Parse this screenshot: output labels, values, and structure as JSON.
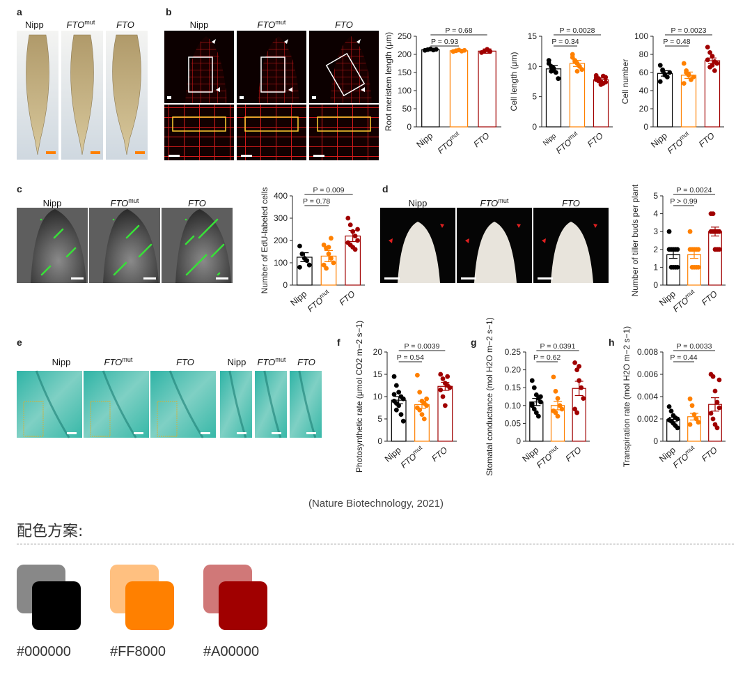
{
  "colors": {
    "nipp": "#000000",
    "mut": "#FF8000",
    "fto": "#A00000",
    "nipp_light": "#888888",
    "mut_light": "#FFC080",
    "fto_light": "#D07878"
  },
  "panel_letters": [
    "a",
    "b",
    "c",
    "d",
    "e",
    "f",
    "g",
    "h"
  ],
  "groups": [
    "Nipp",
    "FTO",
    "FTO"
  ],
  "group_sup": [
    "",
    "mut",
    ""
  ],
  "image_labels": {
    "a": [
      "Nipp",
      "FTO",
      "FTO"
    ],
    "b": [
      "Nipp",
      "FTO",
      "FTO"
    ],
    "c": [
      "Nipp",
      "FTO",
      "FTO"
    ],
    "d": [
      "Nipp",
      "FTO",
      "FTO"
    ],
    "e": [
      "Nipp",
      "FTO",
      "FTO",
      "Nipp",
      "FTO",
      "FTO"
    ]
  },
  "chart_data": [
    {
      "id": "b1",
      "type": "bar",
      "ylabel": "Root meristem length (μm)",
      "ylim": [
        0,
        250
      ],
      "ticks": [
        "0",
        "50",
        "100",
        "150",
        "200",
        "250"
      ],
      "values": [
        213,
        210,
        209
      ],
      "errors": [
        3,
        3,
        6
      ],
      "points": [
        [
          211,
          213,
          215,
          212,
          214
        ],
        [
          208,
          210,
          212,
          209,
          211
        ],
        [
          205,
          209,
          214,
          208
        ]
      ],
      "brackets": [
        {
          "text": "P = 0.68",
          "to": 2
        },
        {
          "text": "P = 0.93",
          "to": 1
        }
      ]
    },
    {
      "id": "b2",
      "type": "bar",
      "ylabel": "Cell length (μm)",
      "ylim": [
        0,
        15
      ],
      "ticks": [
        "0",
        "5",
        "10",
        "15"
      ],
      "values": [
        9.6,
        10.5,
        7.8
      ],
      "errors": [
        0.6,
        0.5,
        0.3
      ],
      "points": [
        [
          11,
          10,
          9.5,
          9,
          8,
          10.5,
          9.2,
          9.7
        ],
        [
          12,
          11,
          10.5,
          10,
          9.5,
          11.5,
          10.8,
          9.2
        ],
        [
          8.5,
          8,
          7.5,
          7.2,
          8.2,
          7.8,
          7.6,
          7,
          8.4,
          7.4,
          8.1,
          7.9
        ]
      ],
      "brackets": [
        {
          "text": "P = 0.0028",
          "to": 2
        },
        {
          "text": "P = 0.34",
          "to": 1
        }
      ]
    },
    {
      "id": "b3",
      "type": "bar",
      "ylabel": "Cell number",
      "ylim": [
        0,
        100
      ],
      "ticks": [
        "0",
        "20",
        "40",
        "60",
        "80",
        "100"
      ],
      "values": [
        59,
        57,
        73
      ],
      "errors": [
        3,
        3.5,
        3
      ],
      "points": [
        [
          68,
          62,
          58,
          55,
          60,
          50,
          63,
          57
        ],
        [
          70,
          62,
          58,
          52,
          55,
          48,
          60,
          57
        ],
        [
          88,
          82,
          78,
          72,
          70,
          74,
          66,
          68,
          62
        ]
      ],
      "brackets": [
        {
          "text": "P = 0.0023",
          "to": 2
        },
        {
          "text": "P = 0.48",
          "to": 1
        }
      ]
    },
    {
      "id": "c1",
      "type": "bar",
      "ylabel": "Number of EdU-labeled cells",
      "ylim": [
        0,
        400
      ],
      "ticks": [
        "0",
        "100",
        "200",
        "300",
        "400"
      ],
      "values": [
        125,
        130,
        220
      ],
      "errors": [
        20,
        25,
        25
      ],
      "points": [
        [
          175,
          140,
          120,
          110,
          90,
          80
        ],
        [
          180,
          165,
          140,
          120,
          100,
          90,
          75,
          170,
          210
        ],
        [
          300,
          270,
          240,
          220,
          200,
          190,
          180,
          170,
          160,
          250
        ]
      ],
      "brackets": [
        {
          "text": "P = 0.009",
          "to": 2
        },
        {
          "text": "P = 0.78",
          "to": 1
        }
      ]
    },
    {
      "id": "d1",
      "type": "bar",
      "ylabel": "Number of tiller buds per plant",
      "ylim": [
        0,
        5
      ],
      "ticks": [
        "0",
        "1",
        "2",
        "3",
        "4",
        "5"
      ],
      "values": [
        1.7,
        1.7,
        3.0
      ],
      "errors": [
        0.2,
        0.2,
        0.25
      ],
      "points": [
        [
          3,
          2,
          2,
          2,
          2,
          2,
          1,
          1,
          1,
          1
        ],
        [
          3,
          2,
          2,
          2,
          2,
          2,
          1,
          1,
          1,
          1
        ],
        [
          4,
          4,
          3,
          3,
          3,
          3,
          3,
          2,
          2,
          2
        ]
      ],
      "brackets": [
        {
          "text": "P = 0.0024",
          "to": 2
        },
        {
          "text": "P > 0.99",
          "to": 1
        }
      ]
    },
    {
      "id": "f",
      "type": "bar",
      "ylabel": "Photosynthetic rate (μmol CO2 m−2 s−1)",
      "ylim": [
        0,
        20
      ],
      "ticks": [
        "0",
        "5",
        "10",
        "15",
        "20"
      ],
      "values": [
        9.2,
        8.2,
        12.3
      ],
      "errors": [
        0.8,
        0.8,
        0.9
      ],
      "points": [
        [
          14.5,
          12.5,
          11,
          10,
          9.5,
          9,
          8.5,
          8,
          6,
          4.5,
          10.5,
          7
        ],
        [
          14.8,
          11,
          9,
          8.5,
          8,
          7.5,
          7,
          6,
          5,
          9.5
        ],
        [
          15,
          14,
          13,
          12.5,
          12,
          11.5,
          10,
          8,
          14.5
        ]
      ],
      "brackets": [
        {
          "text": "P = 0.0039",
          "to": 2
        },
        {
          "text": "P = 0.54",
          "to": 1
        }
      ]
    },
    {
      "id": "g",
      "type": "bar",
      "ylabel": "Stomatal conductance (mol H2O m−2 s−1)",
      "ylim": [
        0,
        0.25
      ],
      "ticks": [
        "0",
        "0.05",
        "0.10",
        "0.15",
        "0.20",
        "0.25"
      ],
      "values": [
        0.11,
        0.1,
        0.148
      ],
      "errors": [
        0.01,
        0.012,
        0.02
      ],
      "points": [
        [
          0.17,
          0.15,
          0.13,
          0.12,
          0.11,
          0.1,
          0.09,
          0.08,
          0.07,
          0.125,
          0.105
        ],
        [
          0.18,
          0.14,
          0.12,
          0.1,
          0.09,
          0.085,
          0.08,
          0.07
        ],
        [
          0.22,
          0.2,
          0.17,
          0.15,
          0.12,
          0.09,
          0.08,
          0.21
        ]
      ],
      "brackets": [
        {
          "text": "P = 0.0391",
          "to": 2
        },
        {
          "text": "P = 0.62",
          "to": 1
        }
      ]
    },
    {
      "id": "h",
      "type": "bar",
      "ylabel": "Transpiration rate (mol H2O m−2 s−1)",
      "ylim": [
        0,
        0.008
      ],
      "ticks": [
        "0",
        "0.002",
        "0.004",
        "0.006",
        "0.008"
      ],
      "values": [
        0.00195,
        0.0022,
        0.0033
      ],
      "errors": [
        0.0002,
        0.0003,
        0.0006
      ],
      "points": [
        [
          0.0031,
          0.0027,
          0.0023,
          0.0021,
          0.002,
          0.0019,
          0.0018,
          0.0016,
          0.0014,
          0.0012
        ],
        [
          0.0038,
          0.0032,
          0.0024,
          0.002,
          0.0017,
          0.0015
        ],
        [
          0.006,
          0.0058,
          0.0045,
          0.0035,
          0.003,
          0.0025,
          0.002,
          0.0015,
          0.0012,
          0.0055
        ]
      ],
      "brackets": [
        {
          "text": "P = 0.0033",
          "to": 2
        },
        {
          "text": "P = 0.44",
          "to": 1
        }
      ]
    }
  ],
  "source": "(Nature Biotechnology, 2021)",
  "scheme": {
    "title": "配色方案:",
    "labels": [
      "#000000",
      "#FF8000",
      "#A00000"
    ]
  }
}
